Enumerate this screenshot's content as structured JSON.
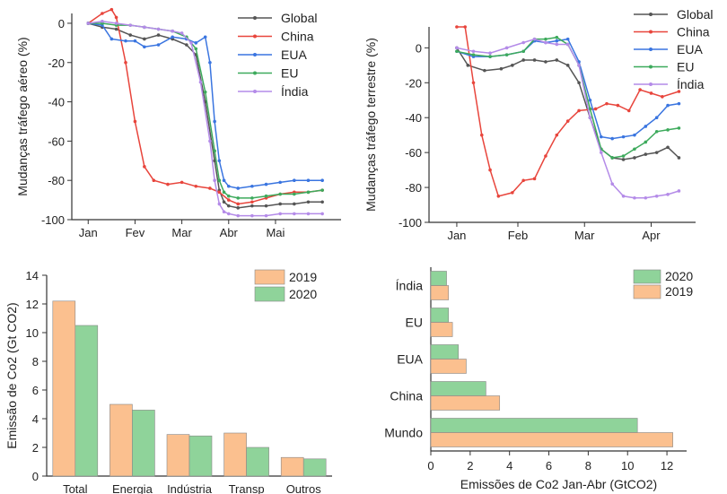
{
  "chart_data": [
    {
      "type": "line",
      "ylabel": "Mudanças tráfego aéreo  (%)",
      "ylim": [
        -100,
        5
      ],
      "yticks": [
        0,
        -20,
        -40,
        -60,
        -80,
        -100
      ],
      "x_ticklabels": [
        "Jan",
        "Fev",
        "Mar",
        "Abr",
        "Mai"
      ],
      "legend_placement": "top-right",
      "series": [
        {
          "name": "Global",
          "color": "#555555",
          "x": [
            0,
            0.3,
            0.6,
            0.9,
            1.2,
            1.5,
            1.8,
            2.1,
            2.3,
            2.5,
            2.7,
            2.8,
            2.9,
            3.0,
            3.2,
            3.5,
            3.8,
            4.1,
            4.4,
            4.7,
            5.0
          ],
          "y": [
            0,
            -2,
            -3,
            -6,
            -8,
            -6,
            -8,
            -11,
            -16,
            -40,
            -70,
            -85,
            -91,
            -93,
            -94,
            -93,
            -93,
            -92,
            -92,
            -91,
            -91
          ]
        },
        {
          "name": "China",
          "color": "#e8453c",
          "x": [
            0,
            0.3,
            0.5,
            0.6,
            0.8,
            1.0,
            1.2,
            1.4,
            1.7,
            2.0,
            2.3,
            2.6,
            2.8,
            3.0,
            3.2,
            3.5,
            3.8,
            4.1,
            4.4,
            4.7,
            5.0
          ],
          "y": [
            0,
            5,
            7,
            3,
            -20,
            -50,
            -73,
            -80,
            -82,
            -81,
            -83,
            -84,
            -86,
            -90,
            -92,
            -91,
            -89,
            -87,
            -86,
            -86,
            -85
          ]
        },
        {
          "name": "EUA",
          "color": "#3a75e0",
          "x": [
            0,
            0.3,
            0.5,
            0.8,
            1.0,
            1.2,
            1.5,
            1.8,
            2.1,
            2.3,
            2.5,
            2.6,
            2.7,
            2.8,
            2.9,
            3.0,
            3.2,
            3.5,
            3.8,
            4.1,
            4.4,
            4.7,
            5.0
          ],
          "y": [
            0,
            -1,
            -8,
            -9,
            -9,
            -12,
            -11,
            -7,
            -8,
            -10,
            -7,
            -20,
            -50,
            -70,
            -80,
            -83,
            -84,
            -83,
            -82,
            -81,
            -80,
            -80,
            -80
          ]
        },
        {
          "name": "EU",
          "color": "#3daa5c",
          "x": [
            0,
            0.3,
            0.6,
            0.9,
            1.2,
            1.5,
            1.8,
            2.1,
            2.3,
            2.5,
            2.7,
            2.8,
            2.9,
            3.0,
            3.2,
            3.5,
            3.8,
            4.1,
            4.4,
            4.7,
            5.0
          ],
          "y": [
            0,
            0,
            -1,
            -1,
            -2,
            -3,
            -4,
            -7,
            -13,
            -35,
            -65,
            -80,
            -86,
            -88,
            -89,
            -89,
            -88,
            -87,
            -87,
            -86,
            -85
          ]
        },
        {
          "name": "Índia",
          "color": "#b48be8",
          "x": [
            0,
            0.3,
            0.6,
            0.9,
            1.2,
            1.5,
            1.8,
            2.0,
            2.2,
            2.4,
            2.6,
            2.7,
            2.8,
            2.9,
            3.0,
            3.2,
            3.5,
            3.8,
            4.1,
            4.4,
            4.7,
            5.0
          ],
          "y": [
            0,
            1,
            0,
            -1,
            -2,
            -3,
            -4,
            -5,
            -10,
            -30,
            -60,
            -80,
            -92,
            -96,
            -97,
            -98,
            -98,
            -98,
            -97,
            -97,
            -97,
            -97
          ]
        }
      ]
    },
    {
      "type": "line",
      "ylabel": "Mudanças tráfego terrestre  (%)",
      "ylim": [
        -100,
        12
      ],
      "yticks": [
        0,
        -20,
        -40,
        -60,
        -80,
        -100
      ],
      "x_ticklabels": [
        "Jan",
        "Feb",
        "Mar",
        "Apr"
      ],
      "legend_placement": "top-right",
      "series": [
        {
          "name": "Global",
          "color": "#555555",
          "x": [
            0,
            0.2,
            0.5,
            0.8,
            1.0,
            1.2,
            1.4,
            1.6,
            1.8,
            2.0,
            2.2,
            2.4,
            2.6,
            2.8,
            3.0,
            3.2,
            3.4,
            3.6,
            3.8,
            4.0
          ],
          "y": [
            0,
            -10,
            -13,
            -12,
            -10,
            -7,
            -7,
            -8,
            -7,
            -10,
            -20,
            -40,
            -58,
            -63,
            -64,
            -63,
            -61,
            -60,
            -57,
            -63
          ]
        },
        {
          "name": "China",
          "color": "#e8453c",
          "x": [
            0,
            0.15,
            0.3,
            0.45,
            0.6,
            0.75,
            1.0,
            1.2,
            1.4,
            1.6,
            1.8,
            2.0,
            2.2,
            2.5,
            2.7,
            2.9,
            3.1,
            3.3,
            3.5,
            3.7,
            4.0
          ],
          "y": [
            12,
            12,
            -20,
            -50,
            -70,
            -85,
            -83,
            -76,
            -75,
            -62,
            -50,
            -42,
            -36,
            -35,
            -32,
            -33,
            -36,
            -24,
            -26,
            -28,
            -25
          ]
        },
        {
          "name": "EUA",
          "color": "#3a75e0",
          "x": [
            0,
            0.3,
            0.6,
            0.9,
            1.2,
            1.4,
            1.6,
            1.8,
            2.0,
            2.2,
            2.4,
            2.6,
            2.8,
            3.0,
            3.2,
            3.4,
            3.6,
            3.8,
            4.0
          ],
          "y": [
            -2,
            -5,
            -5,
            -4,
            -2,
            4,
            3,
            4,
            5,
            -8,
            -30,
            -51,
            -52,
            -51,
            -50,
            -45,
            -40,
            -33,
            -32
          ]
        },
        {
          "name": "EU",
          "color": "#3daa5c",
          "x": [
            0,
            0.3,
            0.6,
            0.9,
            1.2,
            1.4,
            1.6,
            1.8,
            2.0,
            2.2,
            2.4,
            2.6,
            2.8,
            3.0,
            3.2,
            3.4,
            3.6,
            3.8,
            4.0
          ],
          "y": [
            -2,
            -4,
            -5,
            -4,
            -2,
            5,
            5,
            6,
            2,
            -10,
            -35,
            -58,
            -63,
            -62,
            -58,
            -54,
            -48,
            -47,
            -46
          ]
        },
        {
          "name": "Índia",
          "color": "#b48be8",
          "x": [
            0,
            0.3,
            0.6,
            0.9,
            1.2,
            1.4,
            1.6,
            1.8,
            2.0,
            2.2,
            2.4,
            2.6,
            2.8,
            3.0,
            3.2,
            3.4,
            3.6,
            3.8,
            4.0
          ],
          "y": [
            0,
            -2,
            -3,
            0,
            3,
            5,
            3,
            2,
            2,
            -10,
            -40,
            -60,
            -78,
            -85,
            -86,
            -86,
            -85,
            -84,
            -82
          ]
        }
      ]
    },
    {
      "type": "bar",
      "ylabel": "Emissão de Co2  (Gt CO2)",
      "ylim": [
        0,
        14
      ],
      "yticks": [
        0,
        2,
        4,
        6,
        8,
        10,
        12,
        14
      ],
      "categories": [
        "Total",
        "Energia",
        "Indústria",
        "Transp",
        "Outros"
      ],
      "legend_placement": "top-right",
      "series": [
        {
          "name": "2019",
          "color": "#fbc08f",
          "values": [
            12.2,
            5.0,
            2.9,
            3.0,
            1.3
          ]
        },
        {
          "name": "2020",
          "color": "#8fd39a",
          "values": [
            10.5,
            4.6,
            2.8,
            2.0,
            1.2
          ]
        }
      ]
    },
    {
      "type": "bar",
      "orientation": "horizontal",
      "xlabel": "Emissões de Co2 Jan-Abr (GtCO2)",
      "xlim": [
        0,
        13
      ],
      "xticks": [
        0,
        2,
        4,
        6,
        8,
        10,
        12
      ],
      "categories": [
        "Índia",
        "EU",
        "EUA",
        "China",
        "Mundo"
      ],
      "legend_placement": "top-right",
      "series": [
        {
          "name": "2020",
          "color": "#8fd39a",
          "values": [
            0.8,
            0.9,
            1.4,
            2.8,
            10.5
          ]
        },
        {
          "name": "2019",
          "color": "#fbc08f",
          "values": [
            0.9,
            1.1,
            1.8,
            3.5,
            12.3
          ]
        }
      ]
    }
  ]
}
